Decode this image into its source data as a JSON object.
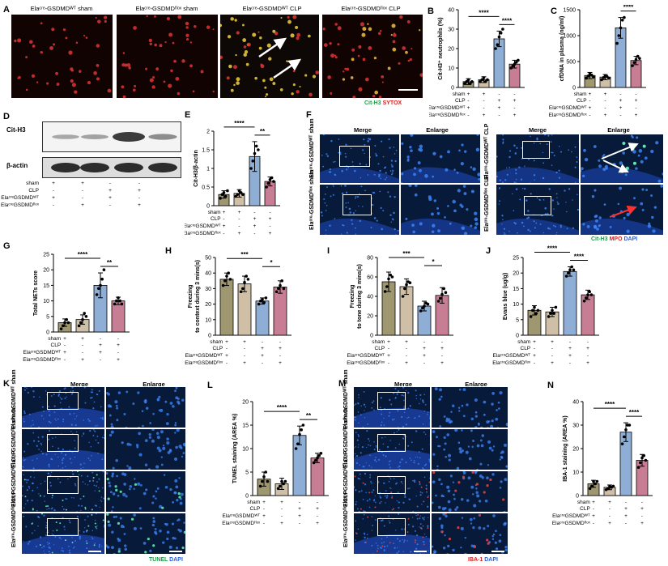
{
  "panels": {
    "A": "A",
    "B": "B",
    "C": "C",
    "D": "D",
    "E": "E",
    "F": "F",
    "G": "G",
    "H": "H",
    "I": "I",
    "J": "J",
    "K": "K",
    "L": "L",
    "M": "M",
    "N": "N"
  },
  "A": {
    "titles": [
      "Elaᶜʳᵉ-GSDMDᵂᵀ sham",
      "Elaᶜʳᵉ-GSDMDᶠˡᵒˣ sham",
      "Elaᶜʳᵉ-GSDMDᵂᵀ CLP",
      "Elaᶜʳᵉ-GSDMDᶠˡᵒˣ CLP"
    ],
    "legend": [
      "Cit-H3",
      "SYTOX"
    ]
  },
  "colors": {
    "wt_sham": "#9e9770",
    "flox_sham": "#cfbfa6",
    "wt_clp": "#8eaed6",
    "flox_clp": "#c77d94",
    "green": "#1e9a4a",
    "red": "#e02020",
    "blue": "#2a5fd8"
  },
  "groups": {
    "row_labels": [
      "sham",
      "CLP",
      "ElaᶜʳᵉGSDMDᵂᵀ",
      "ElaᶜʳᵉGSDMDᶠˡᵒˣ"
    ],
    "signs": [
      [
        "+",
        "+",
        "-",
        "-"
      ],
      [
        "-",
        "-",
        "+",
        "+"
      ],
      [
        "+",
        "-",
        "+",
        "-"
      ],
      [
        "-",
        "+",
        "-",
        "+"
      ]
    ]
  },
  "D": {
    "labels": [
      "Cit-H3",
      "β-actin"
    ],
    "row_labels": [
      "sham",
      "CLP",
      "ElaᶜʳᵉGSDMDᵂᵀ",
      "ElaᶜʳᵉGSDMDᶠˡᵒˣ"
    ],
    "band_intensity": [
      0.2,
      0.25,
      1.0,
      0.4
    ]
  },
  "F": {
    "headers": [
      "Merge",
      "Enlarge",
      "Merge",
      "Enlarge"
    ],
    "rows": [
      "Elaᶜʳᵉ-GSDMDᵂᵀ sham",
      "Elaᶜʳᵉ-GSDMDᶠˡᵒˣ sham",
      "Elaᶜʳᵉ-GSDMDᵂᵀ CLP",
      "Elaᶜʳᵉ-GSDMDᶠˡᵒˣ CLP"
    ],
    "legend": [
      "Cit-H3",
      "MPO",
      "DAPI"
    ]
  },
  "K": {
    "headers": [
      "Merge",
      "Enlarge"
    ],
    "rows": [
      "Elaᶜʳᵉ-GSDMDᵂᵀ sham",
      "Elaᶜʳᵉ-GSDMDᶠˡᵒˣ sham",
      "Elaᶜʳᵉ-GSDMDᵂᵀ CLP",
      "Elaᶜʳᵉ-GSDMDᶠˡᵒˣ CLP"
    ],
    "legend": [
      "TUNEL",
      "DAPI"
    ]
  },
  "M": {
    "headers": [
      "Merge",
      "Enlarge"
    ],
    "rows": [
      "Elaᶜʳᵉ-GSDMDᵂᵀ sham",
      "Elaᶜʳᵉ-GSDMDᶠˡᵒˣ sham",
      "Elaᶜʳᵉ-GSDMDᵂᵀ CLP",
      "Elaᶜʳᵉ-GSDMDᶠˡᵒˣ CLP"
    ],
    "legend": [
      "IBA-1",
      "DAPI"
    ]
  },
  "chart_data": [
    {
      "id": "B",
      "type": "bar",
      "ylabel": "Cit-H3⁺ neutrophils (%)",
      "ylim": [
        0,
        40
      ],
      "ticks": [
        0,
        10,
        20,
        30,
        40
      ],
      "values": [
        3,
        4,
        25,
        12
      ],
      "errors": [
        1.5,
        1.5,
        4,
        2
      ],
      "points": [
        [
          2,
          3,
          4,
          2,
          3
        ],
        [
          3,
          4,
          5,
          3,
          4
        ],
        [
          20,
          22,
          26,
          28,
          30
        ],
        [
          10,
          11,
          12,
          13,
          14
        ]
      ],
      "sig": [
        {
          "a": 0,
          "b": 2,
          "label": "****"
        },
        {
          "a": 2,
          "b": 3,
          "label": "****"
        }
      ]
    },
    {
      "id": "C",
      "type": "bar",
      "ylabel": "cfDNA in plasma (ng/ml)",
      "ylim": [
        0,
        1500
      ],
      "ticks": [
        0,
        500,
        1000,
        1500
      ],
      "values": [
        230,
        200,
        1150,
        520
      ],
      "errors": [
        60,
        50,
        200,
        80
      ],
      "points": [
        [
          180,
          220,
          260,
          240,
          200
        ],
        [
          150,
          190,
          230,
          210,
          180
        ],
        [
          850,
          1000,
          1150,
          1300,
          1350
        ],
        [
          420,
          480,
          540,
          600,
          560
        ]
      ],
      "sig": [
        {
          "a": 0,
          "b": 2,
          "label": "****"
        },
        {
          "a": 2,
          "b": 3,
          "label": "****"
        }
      ]
    },
    {
      "id": "E",
      "type": "bar",
      "ylabel": "Cit-H3/β-actin",
      "ylim": [
        0,
        2.0
      ],
      "ticks": [
        0.0,
        0.5,
        1.0,
        1.5,
        2.0
      ],
      "values": [
        0.3,
        0.33,
        1.32,
        0.65
      ],
      "errors": [
        0.1,
        0.1,
        0.4,
        0.12
      ],
      "points": [
        [
          0.2,
          0.3,
          0.35,
          0.25,
          0.4
        ],
        [
          0.25,
          0.3,
          0.4,
          0.35,
          0.3
        ],
        [
          1.0,
          1.2,
          1.4,
          1.6,
          1.5
        ],
        [
          0.5,
          0.6,
          0.7,
          0.75,
          0.65
        ]
      ],
      "sig": [
        {
          "a": 0,
          "b": 2,
          "label": "****"
        },
        {
          "a": 2,
          "b": 3,
          "label": "**"
        }
      ]
    },
    {
      "id": "G",
      "type": "bar",
      "ylabel": "Total NETs score",
      "ylim": [
        0,
        25
      ],
      "ticks": [
        0,
        5,
        10,
        15,
        20,
        25
      ],
      "values": [
        3,
        4,
        15,
        10
      ],
      "errors": [
        1.2,
        1.5,
        4,
        1.2
      ],
      "points": [
        [
          1,
          2,
          3,
          4,
          3
        ],
        [
          2,
          3,
          4,
          6,
          5
        ],
        [
          12,
          14,
          15,
          17,
          20
        ],
        [
          9,
          10,
          11,
          10,
          9
        ]
      ],
      "sig": [
        {
          "a": 0,
          "b": 2,
          "label": "****"
        },
        {
          "a": 2,
          "b": 3,
          "label": "**"
        }
      ]
    },
    {
      "id": "H",
      "type": "bar",
      "ylabel": "Freezing\nto context during 3 mins(s)",
      "ylim": [
        0,
        50
      ],
      "ticks": [
        0,
        10,
        20,
        30,
        40,
        50
      ],
      "values": [
        36,
        33,
        22,
        31
      ],
      "errors": [
        4,
        5,
        2,
        4
      ],
      "points": [
        [
          32,
          35,
          38,
          40,
          36
        ],
        [
          28,
          30,
          34,
          38,
          36
        ],
        [
          20,
          22,
          23,
          21,
          24
        ],
        [
          28,
          30,
          32,
          35,
          30
        ]
      ],
      "sig": [
        {
          "a": 0,
          "b": 2,
          "label": "***"
        },
        {
          "a": 2,
          "b": 3,
          "label": "*"
        }
      ]
    },
    {
      "id": "I",
      "type": "bar",
      "ylabel": "Freezing\nto tone during 3 mins(s)",
      "ylim": [
        0,
        80
      ],
      "ticks": [
        0,
        20,
        40,
        60,
        80
      ],
      "values": [
        55,
        50,
        30,
        41
      ],
      "errors": [
        10,
        8,
        5,
        8
      ],
      "points": [
        [
          45,
          50,
          58,
          62,
          60
        ],
        [
          40,
          48,
          52,
          55,
          54
        ],
        [
          25,
          28,
          30,
          33,
          32
        ],
        [
          35,
          38,
          42,
          48,
          44
        ]
      ],
      "sig": [
        {
          "a": 0,
          "b": 2,
          "label": "***"
        },
        {
          "a": 2,
          "b": 3,
          "label": "*"
        }
      ]
    },
    {
      "id": "J",
      "type": "bar",
      "ylabel": "Evans blue (ug/g)",
      "ylim": [
        0,
        25
      ],
      "ticks": [
        0,
        5,
        10,
        15,
        20,
        25
      ],
      "values": [
        8,
        7.5,
        20.5,
        13
      ],
      "errors": [
        1.5,
        1.5,
        1.5,
        1.5
      ],
      "points": [
        [
          6,
          8,
          9,
          7,
          8
        ],
        [
          6,
          7,
          8,
          7,
          9
        ],
        [
          19,
          20,
          21,
          22,
          21
        ],
        [
          11,
          12,
          13,
          14,
          13
        ]
      ],
      "sig": [
        {
          "a": 0,
          "b": 2,
          "label": "****"
        },
        {
          "a": 2,
          "b": 3,
          "label": "****"
        }
      ]
    },
    {
      "id": "L",
      "type": "bar",
      "ylabel": "TUNEL staining (AREA %)",
      "ylim": [
        0,
        20
      ],
      "ticks": [
        0,
        5,
        10,
        15,
        20
      ],
      "values": [
        3.5,
        2.5,
        12.8,
        8
      ],
      "errors": [
        1.5,
        1.2,
        2,
        1
      ],
      "points": [
        [
          2,
          3,
          4,
          5,
          3
        ],
        [
          1.5,
          2,
          3,
          2.5,
          3
        ],
        [
          10,
          11,
          13,
          14,
          15
        ],
        [
          7,
          7.5,
          8,
          8.5,
          9
        ]
      ],
      "sig": [
        {
          "a": 0,
          "b": 2,
          "label": "****"
        },
        {
          "a": 2,
          "b": 3,
          "label": "**"
        }
      ]
    },
    {
      "id": "N",
      "type": "bar",
      "ylabel": "IBA-1 staining (AREA %)",
      "ylim": [
        0,
        40
      ],
      "ticks": [
        0,
        10,
        20,
        30,
        40
      ],
      "values": [
        5,
        3.5,
        27,
        15
      ],
      "errors": [
        1.5,
        1,
        4,
        2.5
      ],
      "points": [
        [
          3,
          4,
          6,
          5,
          6
        ],
        [
          2.5,
          3,
          4,
          3.5,
          4
        ],
        [
          22,
          25,
          28,
          30,
          30
        ],
        [
          12,
          14,
          16,
          17,
          15
        ]
      ],
      "sig": [
        {
          "a": 0,
          "b": 2,
          "label": "****"
        },
        {
          "a": 2,
          "b": 3,
          "label": "****"
        }
      ]
    }
  ]
}
